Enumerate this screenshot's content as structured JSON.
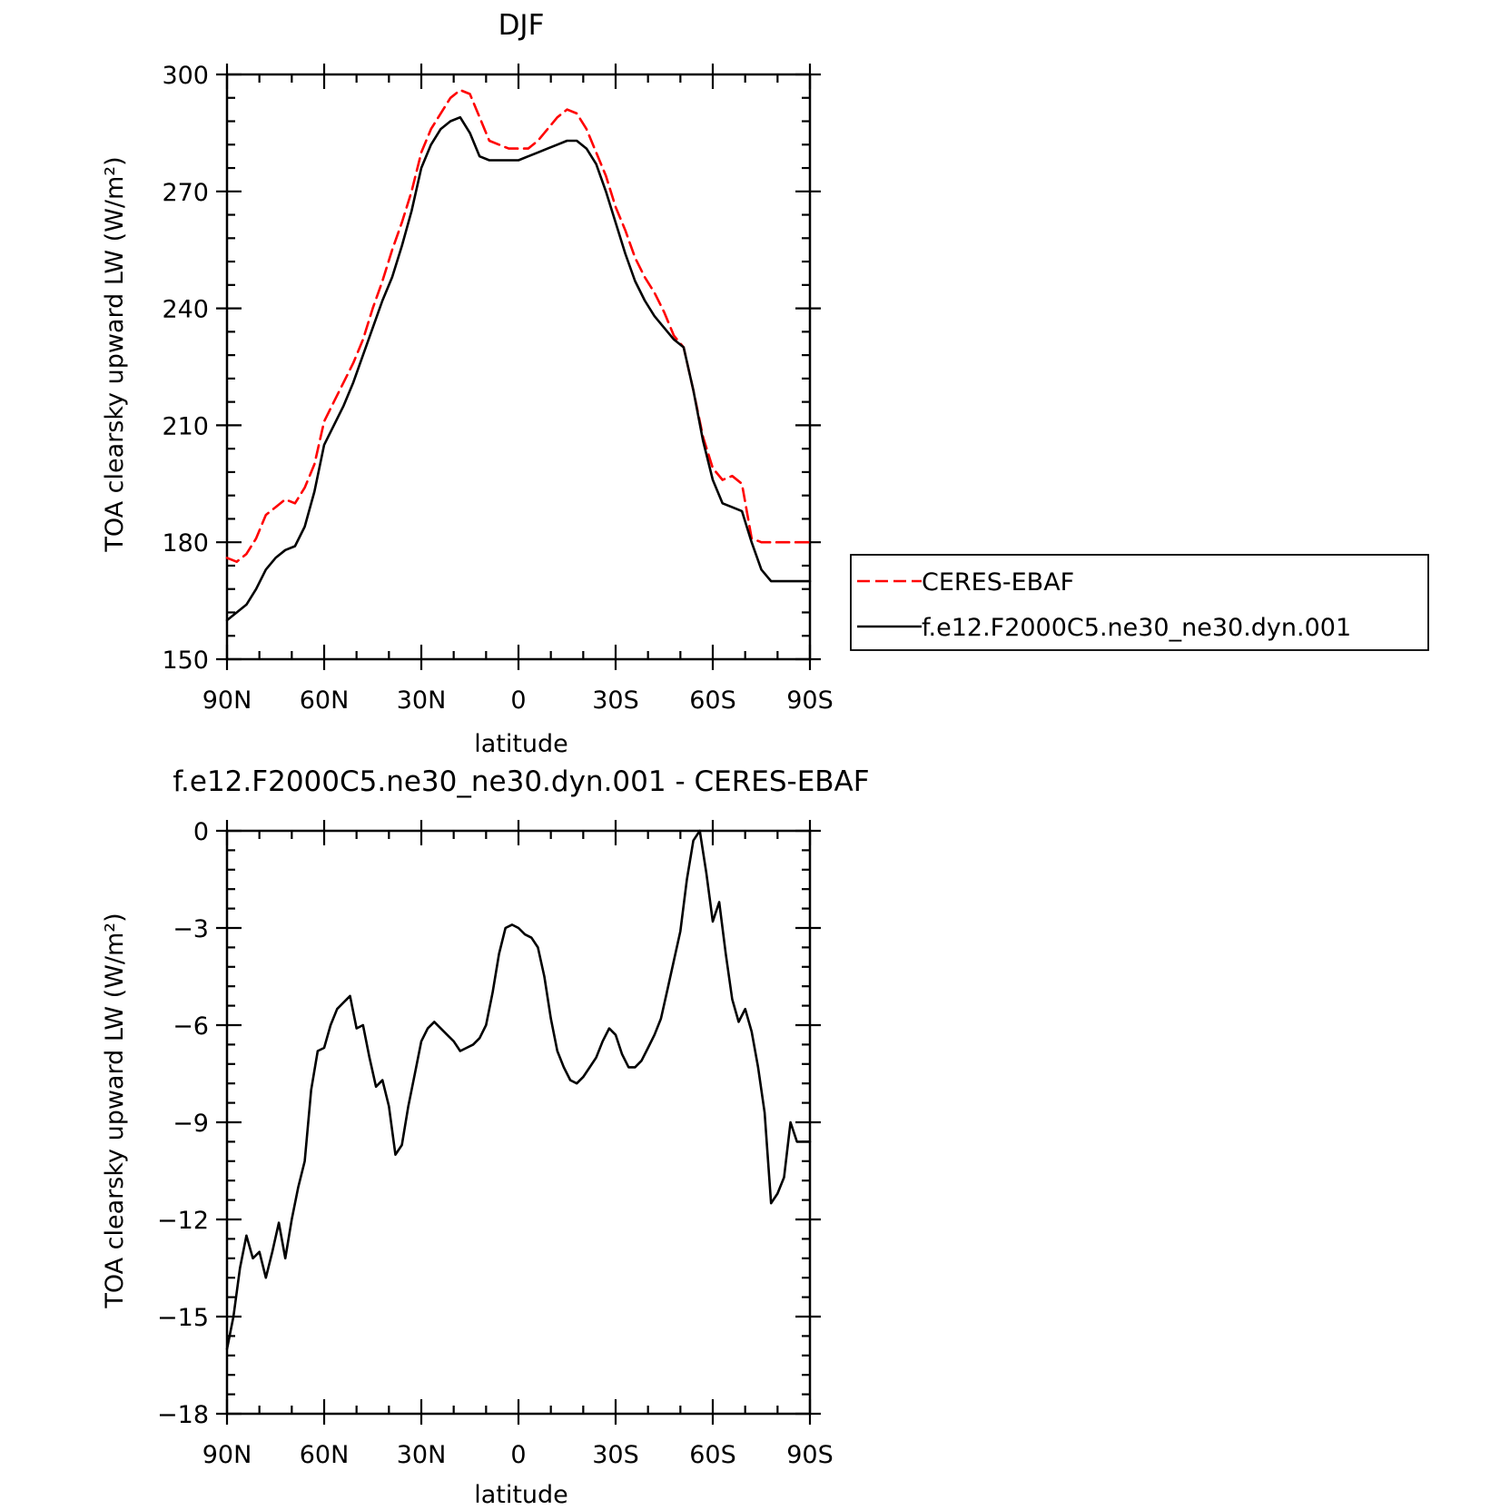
{
  "figure": {
    "top_title": "DJF",
    "bottom_title": "f.e12.F2000C5.ne30_ne30.dyn.001 - CERES-EBAF"
  },
  "legend": {
    "position": "right of top panel",
    "entries": [
      {
        "label": "CERES-EBAF",
        "color": "#ff0000",
        "dash": "dashed"
      },
      {
        "label": "f.e12.F2000C5.ne30_ne30.dyn.001",
        "color": "#000000",
        "dash": "solid"
      }
    ]
  },
  "chart_data": [
    {
      "type": "line",
      "title": "DJF",
      "xlabel": "latitude",
      "ylabel": "TOA clearsky upward LW (W/m²)",
      "xlim": [
        -90,
        90
      ],
      "ylim": [
        150,
        300
      ],
      "xticks": [
        -90,
        -60,
        -30,
        0,
        30,
        60,
        90
      ],
      "xtick_labels": [
        "90N",
        "60N",
        "30N",
        "0",
        "30S",
        "60S",
        "90S"
      ],
      "yticks": [
        150,
        180,
        210,
        240,
        270,
        300
      ],
      "ytick_labels": [
        "150",
        "180",
        "210",
        "240",
        "270",
        "300"
      ],
      "grid": false,
      "legend": "right",
      "series": [
        {
          "name": "CERES-EBAF",
          "color": "#ff0000",
          "dash": "dashed",
          "x": [
            -90,
            -87,
            -84,
            -81,
            -78,
            -75,
            -72,
            -69,
            -66,
            -63,
            -60,
            -57,
            -54,
            -51,
            -48,
            -45,
            -42,
            -39,
            -36,
            -33,
            -30,
            -27,
            -24,
            -21,
            -18,
            -15,
            -12,
            -9,
            -6,
            -3,
            0,
            3,
            6,
            9,
            12,
            15,
            18,
            21,
            24,
            27,
            30,
            33,
            36,
            39,
            42,
            45,
            48,
            51,
            54,
            57,
            60,
            63,
            66,
            69,
            72,
            75,
            78,
            81,
            84,
            87,
            90
          ],
          "y": [
            176,
            175,
            177,
            181,
            187,
            189,
            191,
            190,
            194,
            200,
            211,
            216,
            221,
            226,
            232,
            240,
            247,
            255,
            262,
            270,
            280,
            286,
            290,
            294,
            296,
            295,
            289,
            283,
            282,
            281,
            281,
            281,
            283,
            286,
            289,
            291,
            290,
            286,
            280,
            274,
            266,
            260,
            253,
            248,
            244,
            239,
            233,
            230,
            219,
            207,
            199,
            196,
            197,
            195,
            181,
            180,
            180,
            180,
            180,
            180,
            180
          ]
        },
        {
          "name": "f.e12.F2000C5.ne30_ne30.dyn.001",
          "color": "#000000",
          "dash": "solid",
          "x": [
            -90,
            -87,
            -84,
            -81,
            -78,
            -75,
            -72,
            -69,
            -66,
            -63,
            -60,
            -57,
            -54,
            -51,
            -48,
            -45,
            -42,
            -39,
            -36,
            -33,
            -30,
            -27,
            -24,
            -21,
            -18,
            -15,
            -12,
            -9,
            -6,
            -3,
            0,
            3,
            6,
            9,
            12,
            15,
            18,
            21,
            24,
            27,
            30,
            33,
            36,
            39,
            42,
            45,
            48,
            51,
            54,
            57,
            60,
            63,
            66,
            69,
            72,
            75,
            78,
            81,
            84,
            87,
            90
          ],
          "y": [
            160,
            162,
            164,
            168,
            173,
            176,
            178,
            179,
            184,
            193,
            205,
            210,
            215,
            221,
            228,
            235,
            242,
            248,
            256,
            265,
            276,
            282,
            286,
            288,
            289,
            285,
            279,
            278,
            278,
            278,
            278,
            279,
            280,
            281,
            282,
            283,
            283,
            281,
            277,
            270,
            262,
            254,
            247,
            242,
            238,
            235,
            232,
            230,
            219,
            206,
            196,
            190,
            189,
            188,
            180,
            173,
            170,
            170,
            170,
            170,
            170
          ]
        }
      ]
    },
    {
      "type": "line",
      "title": "f.e12.F2000C5.ne30_ne30.dyn.001 - CERES-EBAF",
      "xlabel": "latitude",
      "ylabel": "TOA clearsky upward LW (W/m²)",
      "xlim": [
        -90,
        90
      ],
      "ylim": [
        -18,
        0
      ],
      "xticks": [
        -90,
        -60,
        -30,
        0,
        30,
        60,
        90
      ],
      "xtick_labels": [
        "90N",
        "60N",
        "30N",
        "0",
        "30S",
        "60S",
        "90S"
      ],
      "yticks": [
        -18,
        -15,
        -12,
        -9,
        -6,
        -3,
        0
      ],
      "ytick_labels": [
        "−18",
        "−15",
        "−12",
        "−9",
        "−6",
        "−3",
        "0"
      ],
      "grid": false,
      "series": [
        {
          "name": "",
          "color": "#000000",
          "dash": "solid",
          "x": [
            -90,
            -88,
            -86,
            -84,
            -82,
            -80,
            -78,
            -76,
            -74,
            -72,
            -70,
            -68,
            -66,
            -64,
            -62,
            -60,
            -58,
            -56,
            -54,
            -52,
            -50,
            -48,
            -46,
            -44,
            -42,
            -40,
            -38,
            -36,
            -34,
            -32,
            -30,
            -28,
            -26,
            -24,
            -22,
            -20,
            -18,
            -16,
            -14,
            -12,
            -10,
            -8,
            -6,
            -4,
            -2,
            0,
            2,
            4,
            6,
            8,
            10,
            12,
            14,
            16,
            18,
            20,
            22,
            24,
            26,
            28,
            30,
            32,
            34,
            36,
            38,
            40,
            42,
            44,
            46,
            48,
            50,
            52,
            54,
            56,
            58,
            60,
            62,
            64,
            66,
            68,
            70,
            72,
            74,
            76,
            78,
            80,
            82,
            84,
            86,
            88,
            90
          ],
          "y": [
            -16.0,
            -15.0,
            -13.5,
            -12.5,
            -13.2,
            -13.0,
            -13.8,
            -13.0,
            -12.1,
            -13.2,
            -12.0,
            -11.0,
            -10.2,
            -8.0,
            -6.8,
            -6.7,
            -6.0,
            -5.5,
            -5.3,
            -5.1,
            -6.1,
            -6.0,
            -7.0,
            -7.9,
            -7.7,
            -8.5,
            -10.0,
            -9.7,
            -8.5,
            -7.5,
            -6.5,
            -6.1,
            -5.9,
            -6.1,
            -6.3,
            -6.5,
            -6.8,
            -6.7,
            -6.6,
            -6.4,
            -6.0,
            -5.0,
            -3.8,
            -3.0,
            -2.9,
            -3.0,
            -3.2,
            -3.3,
            -3.6,
            -4.5,
            -5.8,
            -6.8,
            -7.3,
            -7.7,
            -7.8,
            -7.6,
            -7.3,
            -7.0,
            -6.5,
            -6.1,
            -6.3,
            -6.9,
            -7.3,
            -7.3,
            -7.1,
            -6.7,
            -6.3,
            -5.8,
            -4.9,
            -4.0,
            -3.1,
            -1.5,
            -0.3,
            0.0,
            -1.3,
            -2.8,
            -2.2,
            -3.8,
            -5.2,
            -5.9,
            -5.5,
            -6.2,
            -7.3,
            -8.7,
            -11.5,
            -11.2,
            -10.7,
            -9.0,
            -9.6,
            -9.6,
            -9.6
          ]
        }
      ]
    }
  ]
}
